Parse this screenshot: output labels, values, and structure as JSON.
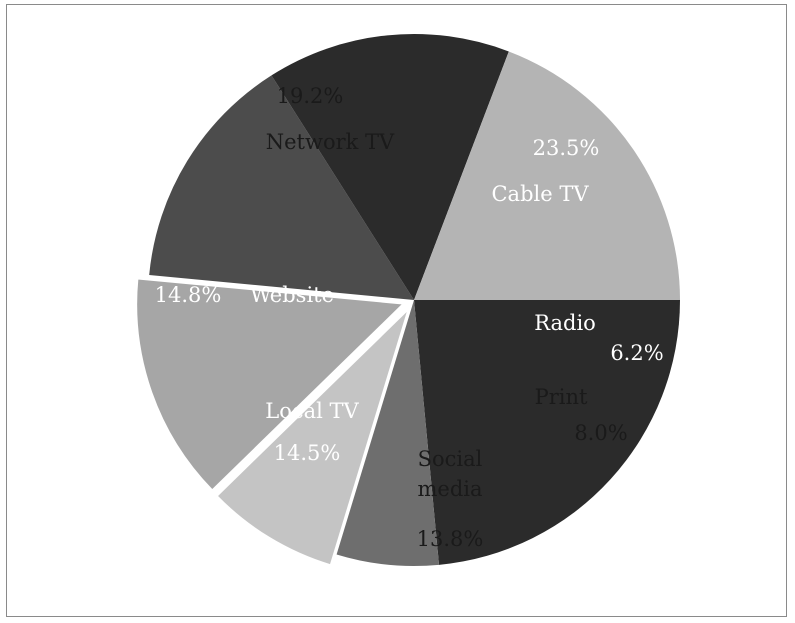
{
  "chart_data": {
    "type": "pie",
    "title": "",
    "slices": [
      {
        "label": "Cable TV",
        "value": 23.5,
        "value_label": "23.5%",
        "color": "#2b2b2b",
        "text_color": "#ffffff",
        "exploded": false
      },
      {
        "label": "Radio",
        "value": 6.2,
        "value_label": "6.2%",
        "color": "#6e6e6e",
        "text_color": "#ffffff",
        "exploded": false
      },
      {
        "label": "Print",
        "value": 8.0,
        "value_label": "8.0%",
        "color": "#c4c4c4",
        "text_color": "#1a1a1a",
        "exploded": true
      },
      {
        "label": "Social\nmedia",
        "value": 13.8,
        "value_label": "13.8%",
        "color": "#a6a6a6",
        "text_color": "#1a1a1a",
        "exploded": true
      },
      {
        "label": "Local TV",
        "value": 14.5,
        "value_label": "14.5%",
        "color": "#4c4c4c",
        "text_color": "#ffffff",
        "exploded": false
      },
      {
        "label": "Website",
        "value": 14.8,
        "value_label": "14.8%",
        "color": "#2b2b2b",
        "text_color": "#ffffff",
        "exploded": false
      },
      {
        "label": "Network TV",
        "value": 19.2,
        "value_label": "19.2%",
        "color": "#b4b4b4",
        "text_color": "#1a1a1a",
        "exploded": false
      }
    ],
    "start_angle_deg": 0,
    "direction": "clockwise",
    "legend": "none"
  }
}
